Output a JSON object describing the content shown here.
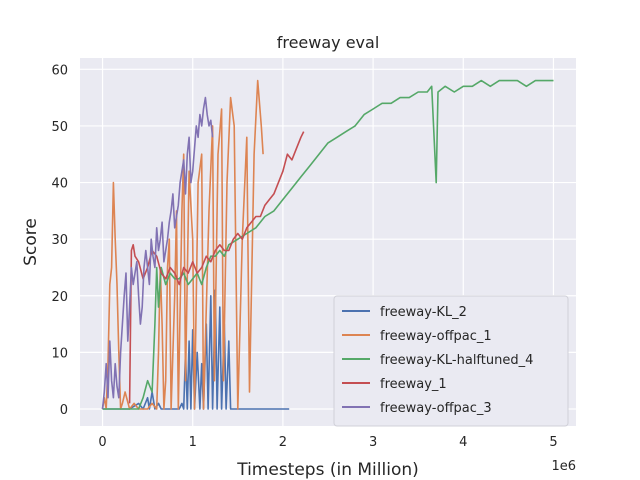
{
  "chart_data": {
    "type": "line",
    "title": "freeway eval",
    "xlabel": "Timesteps (in Million)",
    "ylabel": "Score",
    "x_offset_label": "1e6",
    "xlim": [
      -0.25,
      5.25
    ],
    "ylim": [
      -3,
      62
    ],
    "xticks": [
      0,
      1,
      2,
      3,
      4,
      5
    ],
    "yticks": [
      0,
      10,
      20,
      30,
      40,
      50,
      60
    ],
    "grid": true,
    "legend_position": "lower-right",
    "series": [
      {
        "name": "freeway-KL_2",
        "color": "#4c72b0",
        "points": [
          [
            0.0,
            0
          ],
          [
            0.1,
            0
          ],
          [
            0.2,
            0
          ],
          [
            0.3,
            0
          ],
          [
            0.4,
            1
          ],
          [
            0.45,
            0
          ],
          [
            0.5,
            2
          ],
          [
            0.52,
            0
          ],
          [
            0.55,
            3
          ],
          [
            0.58,
            0
          ],
          [
            0.62,
            1
          ],
          [
            0.65,
            0
          ],
          [
            0.7,
            0
          ],
          [
            0.75,
            0
          ],
          [
            0.8,
            0
          ],
          [
            0.85,
            0
          ],
          [
            0.88,
            1
          ],
          [
            0.9,
            0
          ],
          [
            0.92,
            10
          ],
          [
            0.94,
            0
          ],
          [
            0.96,
            12
          ],
          [
            0.98,
            0
          ],
          [
            1.0,
            14
          ],
          [
            1.02,
            0
          ],
          [
            1.05,
            10
          ],
          [
            1.08,
            0
          ],
          [
            1.1,
            8
          ],
          [
            1.12,
            0
          ],
          [
            1.15,
            15
          ],
          [
            1.17,
            0
          ],
          [
            1.2,
            20
          ],
          [
            1.22,
            0
          ],
          [
            1.25,
            21
          ],
          [
            1.27,
            0
          ],
          [
            1.3,
            18
          ],
          [
            1.32,
            0
          ],
          [
            1.35,
            15
          ],
          [
            1.37,
            0
          ],
          [
            1.4,
            12
          ],
          [
            1.42,
            0
          ],
          [
            1.5,
            0
          ],
          [
            1.6,
            0
          ],
          [
            1.7,
            0
          ],
          [
            1.8,
            0
          ],
          [
            1.9,
            0
          ],
          [
            2.0,
            0
          ],
          [
            2.07,
            0
          ]
        ]
      },
      {
        "name": "freeway-offpac_1",
        "color": "#dd8452",
        "points": [
          [
            0.0,
            0
          ],
          [
            0.02,
            2
          ],
          [
            0.04,
            0
          ],
          [
            0.06,
            8
          ],
          [
            0.08,
            22
          ],
          [
            0.1,
            25
          ],
          [
            0.12,
            40
          ],
          [
            0.14,
            30
          ],
          [
            0.16,
            22
          ],
          [
            0.18,
            10
          ],
          [
            0.2,
            0
          ],
          [
            0.22,
            1
          ],
          [
            0.25,
            3
          ],
          [
            0.3,
            0
          ],
          [
            0.35,
            1
          ],
          [
            0.4,
            0
          ],
          [
            0.45,
            0
          ],
          [
            0.5,
            0
          ],
          [
            0.55,
            1
          ],
          [
            0.6,
            0
          ],
          [
            0.62,
            10
          ],
          [
            0.64,
            25
          ],
          [
            0.66,
            15
          ],
          [
            0.68,
            0
          ],
          [
            0.7,
            5
          ],
          [
            0.72,
            25
          ],
          [
            0.74,
            30
          ],
          [
            0.76,
            0
          ],
          [
            0.8,
            20
          ],
          [
            0.82,
            35
          ],
          [
            0.84,
            0
          ],
          [
            0.88,
            35
          ],
          [
            0.9,
            45
          ],
          [
            0.92,
            5
          ],
          [
            0.96,
            42
          ],
          [
            1.0,
            30
          ],
          [
            1.02,
            0
          ],
          [
            1.06,
            40
          ],
          [
            1.1,
            45
          ],
          [
            1.12,
            0
          ],
          [
            1.18,
            35
          ],
          [
            1.22,
            50
          ],
          [
            1.24,
            5
          ],
          [
            1.28,
            45
          ],
          [
            1.32,
            53
          ],
          [
            1.34,
            5
          ],
          [
            1.38,
            40
          ],
          [
            1.42,
            55
          ],
          [
            1.46,
            50
          ],
          [
            1.5,
            0
          ],
          [
            1.55,
            30
          ],
          [
            1.6,
            48
          ],
          [
            1.63,
            3
          ],
          [
            1.68,
            45
          ],
          [
            1.72,
            58
          ],
          [
            1.76,
            50
          ],
          [
            1.78,
            45
          ]
        ]
      },
      {
        "name": "freeway-KL-halftuned_4",
        "color": "#55a868",
        "points": [
          [
            0.0,
            0
          ],
          [
            0.1,
            0
          ],
          [
            0.2,
            0
          ],
          [
            0.3,
            0
          ],
          [
            0.4,
            0
          ],
          [
            0.45,
            2
          ],
          [
            0.5,
            5
          ],
          [
            0.55,
            3
          ],
          [
            0.58,
            15
          ],
          [
            0.6,
            25
          ],
          [
            0.62,
            18
          ],
          [
            0.65,
            25
          ],
          [
            0.7,
            22
          ],
          [
            0.75,
            24
          ],
          [
            0.8,
            23
          ],
          [
            0.85,
            23
          ],
          [
            0.9,
            24
          ],
          [
            0.95,
            22
          ],
          [
            1.0,
            23
          ],
          [
            1.05,
            24
          ],
          [
            1.1,
            22
          ],
          [
            1.15,
            25
          ],
          [
            1.2,
            27
          ],
          [
            1.25,
            27
          ],
          [
            1.3,
            28
          ],
          [
            1.35,
            27
          ],
          [
            1.4,
            29
          ],
          [
            1.5,
            30
          ],
          [
            1.6,
            31
          ],
          [
            1.7,
            32
          ],
          [
            1.8,
            34
          ],
          [
            1.9,
            35
          ],
          [
            2.0,
            37
          ],
          [
            2.1,
            39
          ],
          [
            2.2,
            41
          ],
          [
            2.3,
            43
          ],
          [
            2.4,
            45
          ],
          [
            2.5,
            47
          ],
          [
            2.6,
            48
          ],
          [
            2.7,
            49
          ],
          [
            2.8,
            50
          ],
          [
            2.9,
            52
          ],
          [
            3.0,
            53
          ],
          [
            3.1,
            54
          ],
          [
            3.2,
            54
          ],
          [
            3.3,
            55
          ],
          [
            3.4,
            55
          ],
          [
            3.5,
            56
          ],
          [
            3.6,
            56
          ],
          [
            3.65,
            57
          ],
          [
            3.7,
            40
          ],
          [
            3.72,
            56
          ],
          [
            3.8,
            57
          ],
          [
            3.9,
            56
          ],
          [
            4.0,
            57
          ],
          [
            4.1,
            57
          ],
          [
            4.2,
            58
          ],
          [
            4.3,
            57
          ],
          [
            4.4,
            58
          ],
          [
            4.5,
            58
          ],
          [
            4.6,
            58
          ],
          [
            4.7,
            57
          ],
          [
            4.8,
            58
          ],
          [
            4.9,
            58
          ],
          [
            5.0,
            58
          ]
        ]
      },
      {
        "name": "freeway_1",
        "color": "#c44e52",
        "points": [
          [
            0.3,
            1
          ],
          [
            0.32,
            28
          ],
          [
            0.34,
            29
          ],
          [
            0.36,
            27
          ],
          [
            0.4,
            26
          ],
          [
            0.45,
            23
          ],
          [
            0.5,
            25
          ],
          [
            0.55,
            28
          ],
          [
            0.6,
            27
          ],
          [
            0.65,
            24
          ],
          [
            0.7,
            23
          ],
          [
            0.75,
            25
          ],
          [
            0.8,
            24
          ],
          [
            0.85,
            22
          ],
          [
            0.9,
            25
          ],
          [
            0.95,
            24
          ],
          [
            1.0,
            26
          ],
          [
            1.05,
            24
          ],
          [
            1.1,
            25
          ],
          [
            1.15,
            27
          ],
          [
            1.2,
            26
          ],
          [
            1.25,
            28
          ],
          [
            1.3,
            29
          ],
          [
            1.35,
            28
          ],
          [
            1.4,
            28
          ],
          [
            1.45,
            30
          ],
          [
            1.5,
            31
          ],
          [
            1.55,
            30
          ],
          [
            1.6,
            32
          ],
          [
            1.65,
            33
          ],
          [
            1.7,
            34
          ],
          [
            1.75,
            34
          ],
          [
            1.8,
            36
          ],
          [
            1.85,
            37
          ],
          [
            1.9,
            38
          ],
          [
            1.95,
            40
          ],
          [
            2.0,
            42
          ],
          [
            2.05,
            45
          ],
          [
            2.1,
            44
          ],
          [
            2.15,
            46
          ],
          [
            2.2,
            48
          ],
          [
            2.23,
            49
          ]
        ]
      },
      {
        "name": "freeway-offpac_3",
        "color": "#8172b3",
        "points": [
          [
            0.0,
            0
          ],
          [
            0.02,
            3
          ],
          [
            0.04,
            8
          ],
          [
            0.06,
            2
          ],
          [
            0.08,
            12
          ],
          [
            0.1,
            5
          ],
          [
            0.12,
            2
          ],
          [
            0.14,
            8
          ],
          [
            0.16,
            4
          ],
          [
            0.18,
            2
          ],
          [
            0.2,
            10
          ],
          [
            0.22,
            15
          ],
          [
            0.24,
            20
          ],
          [
            0.26,
            24
          ],
          [
            0.28,
            12
          ],
          [
            0.3,
            18
          ],
          [
            0.32,
            25
          ],
          [
            0.34,
            22
          ],
          [
            0.36,
            24
          ],
          [
            0.38,
            26
          ],
          [
            0.4,
            20
          ],
          [
            0.42,
            15
          ],
          [
            0.44,
            18
          ],
          [
            0.46,
            25
          ],
          [
            0.48,
            28
          ],
          [
            0.5,
            25
          ],
          [
            0.52,
            22
          ],
          [
            0.54,
            30
          ],
          [
            0.56,
            27
          ],
          [
            0.58,
            25
          ],
          [
            0.6,
            32
          ],
          [
            0.62,
            28
          ],
          [
            0.64,
            30
          ],
          [
            0.66,
            33
          ],
          [
            0.68,
            26
          ],
          [
            0.7,
            28
          ],
          [
            0.72,
            30
          ],
          [
            0.74,
            33
          ],
          [
            0.76,
            35
          ],
          [
            0.78,
            38
          ],
          [
            0.8,
            32
          ],
          [
            0.82,
            34
          ],
          [
            0.84,
            36
          ],
          [
            0.86,
            40
          ],
          [
            0.88,
            42
          ],
          [
            0.9,
            44
          ],
          [
            0.92,
            38
          ],
          [
            0.94,
            45
          ],
          [
            0.96,
            48
          ],
          [
            0.98,
            40
          ],
          [
            1.0,
            42
          ],
          [
            1.02,
            46
          ],
          [
            1.04,
            50
          ],
          [
            1.06,
            48
          ],
          [
            1.08,
            52
          ],
          [
            1.1,
            50
          ],
          [
            1.12,
            53
          ],
          [
            1.14,
            55
          ],
          [
            1.16,
            52
          ],
          [
            1.18,
            50
          ],
          [
            1.2,
            51
          ],
          [
            1.22,
            48
          ]
        ]
      }
    ]
  }
}
